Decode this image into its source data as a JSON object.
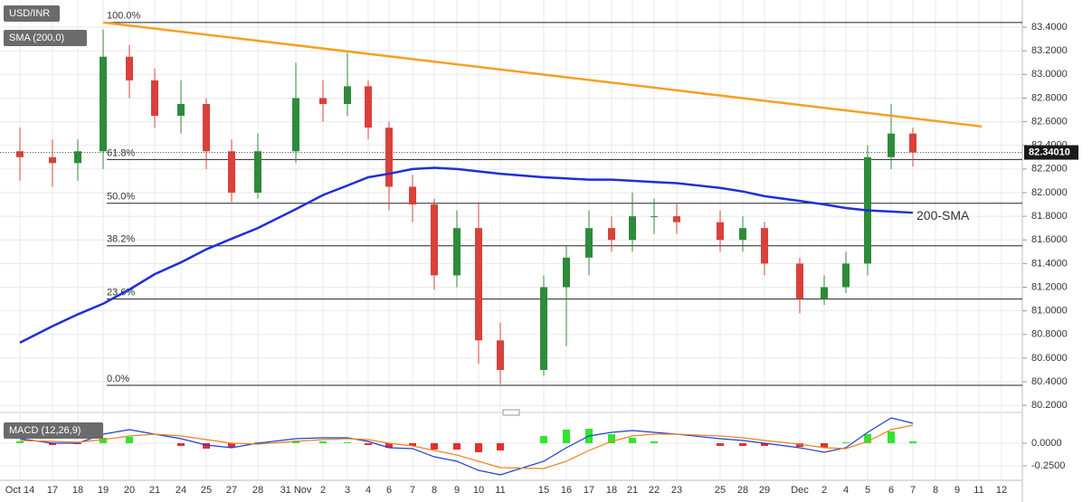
{
  "chart_data": {
    "type": "candlestick",
    "badges": {
      "symbol": "USD/INR",
      "sma": "SMA (200,0)",
      "macd": "MACD (12,26,9)"
    },
    "categories": [
      "Oct 14",
      "17",
      "18",
      "19",
      "20",
      "21",
      "24",
      "25",
      "27",
      "28",
      "31 Nov",
      "2",
      "3",
      "4",
      "6",
      "7",
      "8",
      "9",
      "10",
      "11",
      "15",
      "16",
      "17",
      "18",
      "21",
      "22",
      "23",
      "25",
      "28",
      "29",
      "Dec",
      "2",
      "4",
      "5",
      "6",
      "7",
      "8",
      "9",
      "11",
      "12"
    ],
    "open": [
      82.35,
      82.3,
      82.25,
      82.35,
      83.15,
      82.95,
      82.65,
      82.75,
      82.35,
      82.0,
      82.35,
      82.8,
      82.75,
      82.9,
      82.55,
      82.05,
      81.9,
      81.3,
      81.7,
      80.75,
      80.5,
      81.2,
      81.45,
      81.7,
      81.6,
      81.8,
      81.8,
      81.75,
      81.6,
      81.7,
      81.4,
      81.1,
      81.2,
      81.4,
      82.3,
      82.5,
      null,
      null,
      null,
      null
    ],
    "high": [
      82.55,
      82.45,
      82.45,
      83.38,
      83.25,
      83.05,
      82.95,
      82.8,
      82.45,
      82.5,
      83.1,
      82.95,
      83.18,
      82.95,
      82.6,
      82.15,
      81.95,
      81.85,
      81.92,
      80.9,
      81.3,
      81.55,
      81.85,
      81.8,
      82.0,
      81.95,
      81.9,
      81.85,
      81.8,
      81.75,
      81.45,
      81.3,
      81.5,
      82.4,
      82.75,
      82.55,
      null,
      null,
      null,
      null
    ],
    "low": [
      82.1,
      82.05,
      82.1,
      82.2,
      82.8,
      82.55,
      82.5,
      82.2,
      81.92,
      81.95,
      82.25,
      82.6,
      82.65,
      82.45,
      81.85,
      81.75,
      81.18,
      81.2,
      80.55,
      80.38,
      80.45,
      80.7,
      81.3,
      81.5,
      81.5,
      81.65,
      81.65,
      81.5,
      81.5,
      81.3,
      80.98,
      81.05,
      81.15,
      81.3,
      82.2,
      82.22,
      null,
      null,
      null,
      null
    ],
    "close": [
      82.3,
      82.25,
      82.35,
      83.15,
      82.95,
      82.65,
      82.75,
      82.35,
      82.0,
      82.35,
      82.8,
      82.75,
      82.9,
      82.55,
      82.05,
      81.9,
      81.3,
      81.7,
      80.75,
      80.5,
      81.2,
      81.45,
      81.7,
      81.6,
      81.8,
      81.8,
      81.75,
      81.6,
      81.7,
      81.4,
      81.1,
      81.2,
      81.4,
      82.3,
      82.5,
      82.34,
      null,
      null,
      null,
      null
    ],
    "up_color": "#2e8b3a",
    "down_color": "#d9413a",
    "ylim": [
      80.14,
      83.63
    ],
    "yticks": [
      {
        "value": 83.4,
        "label": "83.4000"
      },
      {
        "value": 83.2,
        "label": "83.2000"
      },
      {
        "value": 83.0,
        "label": "83.0000"
      },
      {
        "value": 82.8,
        "label": "82.8000"
      },
      {
        "value": 82.6,
        "label": "82.6000"
      },
      {
        "value": 82.4,
        "label": "82.4000"
      },
      {
        "value": 82.2,
        "label": "82.2000"
      },
      {
        "value": 82.0,
        "label": "82.0000"
      },
      {
        "value": 81.8,
        "label": "81.8000"
      },
      {
        "value": 81.6,
        "label": "81.6000"
      },
      {
        "value": 81.4,
        "label": "81.4000"
      },
      {
        "value": 81.2,
        "label": "81.2000"
      },
      {
        "value": 81.0,
        "label": "81.0000"
      },
      {
        "value": 80.8,
        "label": "80.8000"
      },
      {
        "value": 80.6,
        "label": "80.6000"
      },
      {
        "value": 80.4,
        "label": "80.4000"
      },
      {
        "value": 80.2,
        "label": "80.2000"
      }
    ],
    "grid": true,
    "last_price": {
      "value": 82.3401,
      "label": "82.34010"
    },
    "sma": {
      "name": "200-SMA",
      "color": "#1f2fd6",
      "label_color": "#6a4fc4",
      "values": [
        80.73,
        80.87,
        80.97,
        81.06,
        81.18,
        81.31,
        81.41,
        81.52,
        81.61,
        81.7,
        81.86,
        81.98,
        82.06,
        82.13,
        82.16,
        82.2,
        82.21,
        82.2,
        82.18,
        82.16,
        82.13,
        82.12,
        82.11,
        82.11,
        82.1,
        82.09,
        82.08,
        82.04,
        82.01,
        81.97,
        81.93,
        81.9,
        81.87,
        81.85,
        81.84,
        81.83,
        null,
        null,
        null,
        null
      ]
    },
    "trendline": {
      "color": "#f5a020",
      "values": [
        83.44,
        82.56
      ]
    },
    "fib_levels": [
      {
        "label": "100.0%",
        "value": 83.44
      },
      {
        "label": "61.8%",
        "value": 82.28
      },
      {
        "label": "50.0%",
        "value": 81.91
      },
      {
        "label": "38.2%",
        "value": 81.55
      },
      {
        "label": "23.6%",
        "value": 81.1
      },
      {
        "label": "0.0%",
        "value": 80.37
      }
    ],
    "macd": {
      "ylim": [
        -0.4,
        0.3
      ],
      "yticks": [
        {
          "value": 0,
          "label": "0.0000"
        },
        {
          "value": -0.25,
          "label": "-0.2500"
        }
      ],
      "macd_line": {
        "color": "#1f3fd0",
        "values": [
          0.05,
          0.0,
          0.0,
          0.1,
          0.15,
          0.1,
          0.05,
          -0.02,
          -0.05,
          0.0,
          0.05,
          0.06,
          0.06,
          0.02,
          -0.05,
          -0.06,
          -0.15,
          -0.2,
          -0.3,
          -0.35,
          -0.2,
          -0.05,
          0.08,
          0.12,
          0.14,
          0.12,
          0.1,
          0.05,
          0.03,
          0.0,
          -0.05,
          -0.1,
          -0.05,
          0.12,
          0.28,
          0.22,
          null,
          null,
          null,
          null
        ]
      },
      "signal_line": {
        "color": "#f08020",
        "values": [
          0.03,
          0.02,
          0.01,
          0.04,
          0.08,
          0.1,
          0.08,
          0.04,
          0.0,
          -0.01,
          0.02,
          0.04,
          0.05,
          0.04,
          0.0,
          -0.03,
          -0.08,
          -0.13,
          -0.2,
          -0.27,
          -0.28,
          -0.2,
          -0.08,
          0.02,
          0.08,
          0.1,
          0.1,
          0.08,
          0.06,
          0.03,
          -0.01,
          -0.05,
          -0.06,
          0.02,
          0.15,
          0.2,
          null,
          null,
          null,
          null
        ]
      },
      "histogram": {
        "up_color": "#2ee62e",
        "down_color": "#e62e2e",
        "values": [
          0.02,
          -0.02,
          -0.01,
          0.06,
          0.07,
          0.0,
          -0.03,
          -0.06,
          -0.05,
          0.01,
          0.03,
          0.02,
          0.01,
          -0.02,
          -0.05,
          -0.03,
          -0.07,
          -0.07,
          -0.1,
          -0.08,
          0.08,
          0.15,
          0.16,
          0.1,
          0.06,
          0.02,
          0.0,
          -0.03,
          -0.03,
          -0.03,
          -0.04,
          -0.05,
          0.01,
          0.1,
          0.13,
          0.02,
          null,
          null,
          null,
          null
        ]
      }
    }
  }
}
